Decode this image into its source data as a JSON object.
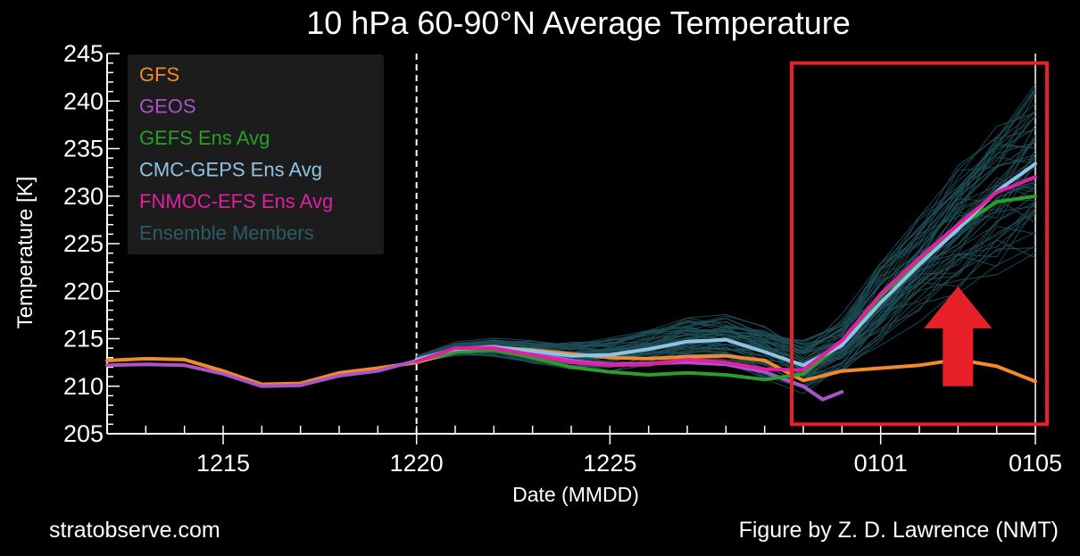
{
  "chart_data": {
    "type": "line",
    "title": "10 hPa  60-90°N Average Temperature",
    "xlabel": "Date (MMDD)",
    "ylabel": "Temperature  [K]",
    "xlim": [
      "2023-12-12",
      "2024-01-05"
    ],
    "ylim": [
      205,
      245
    ],
    "yticks": [
      205,
      210,
      215,
      220,
      225,
      230,
      235,
      240,
      245
    ],
    "xticks": [
      {
        "date": "2023-12-15",
        "label": "1215"
      },
      {
        "date": "2023-12-20",
        "label": "1220"
      },
      {
        "date": "2023-12-25",
        "label": "1225"
      },
      {
        "date": "2024-01-01",
        "label": "0101"
      },
      {
        "date": "2024-01-05",
        "label": "0105"
      }
    ],
    "analysis_divider": "2023-12-20",
    "legend_position": "top-left",
    "series": [
      {
        "name": "GFS",
        "color": "#f08a2c",
        "points": [
          [
            "2023-12-12",
            212.7
          ],
          [
            "2023-12-13",
            212.9
          ],
          [
            "2023-12-14",
            212.8
          ],
          [
            "2023-12-15",
            211.6
          ],
          [
            "2023-12-16",
            210.2
          ],
          [
            "2023-12-17",
            210.3
          ],
          [
            "2023-12-18",
            211.4
          ],
          [
            "2023-12-19",
            211.9
          ],
          [
            "2023-12-20",
            212.5
          ],
          [
            "2023-12-21",
            213.6
          ],
          [
            "2023-12-22",
            214.1
          ],
          [
            "2023-12-23",
            213.8
          ],
          [
            "2023-12-24",
            213.4
          ],
          [
            "2023-12-25",
            213.0
          ],
          [
            "2023-12-26",
            212.9
          ],
          [
            "2023-12-27",
            213.1
          ],
          [
            "2023-12-28",
            213.2
          ],
          [
            "2023-12-29",
            212.7
          ],
          [
            "2023-12-30",
            210.6
          ],
          [
            "2023-12-31",
            211.6
          ],
          [
            "2024-01-01",
            211.9
          ],
          [
            "2024-01-02",
            212.2
          ],
          [
            "2024-01-03",
            212.8
          ],
          [
            "2024-01-04",
            212.1
          ],
          [
            "2024-01-05",
            210.5
          ]
        ]
      },
      {
        "name": "GEOS",
        "color": "#a855c8",
        "points": [
          [
            "2023-12-12",
            212.2
          ],
          [
            "2023-12-13",
            212.3
          ],
          [
            "2023-12-14",
            212.2
          ],
          [
            "2023-12-15",
            211.3
          ],
          [
            "2023-12-16",
            210.0
          ],
          [
            "2023-12-17",
            210.1
          ],
          [
            "2023-12-18",
            211.1
          ],
          [
            "2023-12-19",
            211.6
          ],
          [
            "2023-12-20",
            212.7
          ],
          [
            "2023-12-21",
            213.9
          ],
          [
            "2023-12-22",
            214.2
          ],
          [
            "2023-12-23",
            213.5
          ],
          [
            "2023-12-24",
            212.7
          ],
          [
            "2023-12-25",
            212.3
          ],
          [
            "2023-12-26",
            212.4
          ],
          [
            "2023-12-27",
            212.5
          ],
          [
            "2023-12-28",
            212.3
          ],
          [
            "2023-12-29",
            211.5
          ],
          [
            "2023-12-30",
            210.0
          ],
          [
            "2023-12-30.5",
            208.6
          ],
          [
            "2023-12-31",
            209.4
          ]
        ]
      },
      {
        "name": "GEFS Ens Avg",
        "color": "#2a9d2a",
        "points": [
          [
            "2023-12-20",
            212.7
          ],
          [
            "2023-12-21",
            213.6
          ],
          [
            "2023-12-22",
            213.8
          ],
          [
            "2023-12-23",
            213.0
          ],
          [
            "2023-12-24",
            212.0
          ],
          [
            "2023-12-25",
            211.5
          ],
          [
            "2023-12-26",
            211.2
          ],
          [
            "2023-12-27",
            211.4
          ],
          [
            "2023-12-28",
            211.2
          ],
          [
            "2023-12-29",
            210.7
          ],
          [
            "2023-12-30",
            211.3
          ],
          [
            "2023-12-31",
            214.5
          ],
          [
            "2024-01-01",
            219.5
          ],
          [
            "2024-01-02",
            223.2
          ],
          [
            "2024-01-03",
            226.7
          ],
          [
            "2024-01-04",
            229.4
          ],
          [
            "2024-01-05",
            230.0
          ]
        ]
      },
      {
        "name": "CMC-GEPS Ens Avg",
        "color": "#8fc3e6",
        "points": [
          [
            "2023-12-20",
            212.8
          ],
          [
            "2023-12-21",
            213.9
          ],
          [
            "2023-12-22",
            214.1
          ],
          [
            "2023-12-23",
            213.7
          ],
          [
            "2023-12-24",
            213.2
          ],
          [
            "2023-12-25",
            213.3
          ],
          [
            "2023-12-26",
            213.9
          ],
          [
            "2023-12-27",
            214.7
          ],
          [
            "2023-12-28",
            214.9
          ],
          [
            "2023-12-29",
            213.6
          ],
          [
            "2023-12-30",
            212.2
          ],
          [
            "2023-12-31",
            214.3
          ],
          [
            "2024-01-01",
            218.8
          ],
          [
            "2024-01-02",
            222.8
          ],
          [
            "2024-01-03",
            226.5
          ],
          [
            "2024-01-04",
            230.5
          ],
          [
            "2024-01-05",
            233.4
          ]
        ]
      },
      {
        "name": "FNMOC-EFS Ens Avg",
        "color": "#e020a0",
        "points": [
          [
            "2023-12-20",
            212.6
          ],
          [
            "2023-12-21",
            214.0
          ],
          [
            "2023-12-22",
            214.0
          ],
          [
            "2023-12-23",
            213.3
          ],
          [
            "2023-12-24",
            212.5
          ],
          [
            "2023-12-25",
            212.2
          ],
          [
            "2023-12-26",
            212.3
          ],
          [
            "2023-12-27",
            212.8
          ],
          [
            "2023-12-28",
            212.5
          ],
          [
            "2023-12-29",
            211.8
          ],
          [
            "2023-12-30",
            211.7
          ],
          [
            "2023-12-31",
            214.8
          ],
          [
            "2024-01-01",
            219.7
          ],
          [
            "2024-01-02",
            223.5
          ],
          [
            "2024-01-03",
            227.0
          ],
          [
            "2024-01-04",
            230.4
          ],
          [
            "2024-01-05",
            232.0
          ]
        ]
      }
    ],
    "ensemble_members": {
      "name": "Ensemble Members",
      "color": "#1e4f58",
      "dates": [
        "2023-12-20",
        "2023-12-21",
        "2023-12-22",
        "2023-12-23",
        "2023-12-24",
        "2023-12-25",
        "2023-12-26",
        "2023-12-27",
        "2023-12-28",
        "2023-12-29",
        "2023-12-30",
        "2023-12-31",
        "2024-01-01",
        "2024-01-02",
        "2024-01-03",
        "2024-01-04",
        "2024-01-05"
      ],
      "spread_by_date": [
        0.3,
        0.6,
        0.8,
        1.0,
        1.2,
        1.5,
        1.8,
        2.0,
        2.2,
        2.4,
        2.3,
        2.6,
        3.5,
        4.5,
        5.5,
        6.5,
        7.5
      ],
      "count": 60
    },
    "annotations": [
      {
        "type": "highlight-box",
        "color": "#e8202a",
        "x_range": [
          "2023-12-29.7",
          "2024-01-05.3"
        ],
        "y_range": [
          206,
          244
        ]
      },
      {
        "type": "up-arrow",
        "color": "#e8202a",
        "x": "2024-01-03",
        "y_range": [
          210,
          220.5
        ]
      }
    ]
  },
  "credits": {
    "left": "stratobserve.com",
    "right": "Figure by Z. D. Lawrence (NMT)"
  }
}
